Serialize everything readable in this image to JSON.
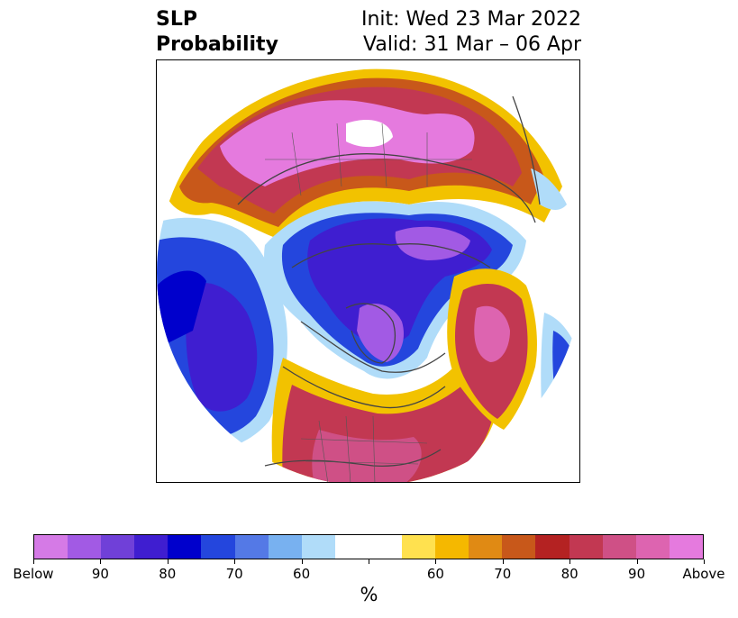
{
  "title": {
    "left_line1": "SLP",
    "left_line2": "Probability",
    "right_line1": "Init: Wed 23 Mar 2022",
    "right_line2": "Valid: 31 Mar – 06 Apr"
  },
  "colorbar": {
    "label": "%",
    "colors": [
      "#d57ae6",
      "#a25ae4",
      "#7040d8",
      "#3f1ed0",
      "#0000cc",
      "#2446dd",
      "#5479e6",
      "#78b1f0",
      "#b0dcf9",
      "#ffffff",
      "#ffffff",
      "#ffe14f",
      "#f5b800",
      "#e08a14",
      "#c8581a",
      "#b42222",
      "#c23852",
      "#cf5086",
      "#dd64b0",
      "#e57ade"
    ],
    "ticks": [
      "Below",
      "90",
      "80",
      "70",
      "60",
      "60",
      "70",
      "80",
      "90",
      "Above"
    ]
  },
  "map": {
    "projection": "north polar stereographic",
    "regions": [
      {
        "name": "eurasia-above",
        "category": "Above 90"
      },
      {
        "name": "arctic-below",
        "category": "Below 90"
      },
      {
        "name": "pacific-below",
        "category": "Below 80"
      },
      {
        "name": "north-america-above",
        "category": "Above 80"
      },
      {
        "name": "atlantic-above",
        "category": "Above 90"
      }
    ]
  }
}
